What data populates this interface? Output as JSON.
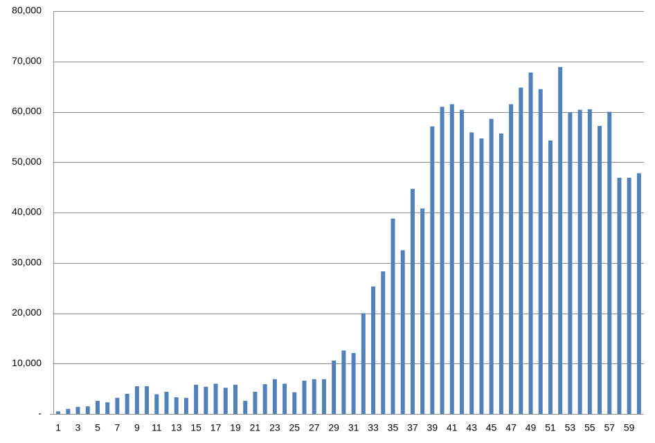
{
  "chart_data": {
    "type": "bar",
    "categories": [
      "1",
      null,
      "3",
      null,
      "5",
      null,
      "7",
      null,
      "9",
      null,
      "11",
      null,
      "13",
      null,
      "15",
      null,
      "17",
      null,
      "19",
      null,
      "21",
      null,
      "23",
      null,
      "25",
      null,
      "27",
      null,
      "29",
      null,
      "31",
      null,
      "33",
      null,
      "35",
      null,
      "37",
      null,
      "39",
      null,
      "41",
      null,
      "43",
      null,
      "45",
      null,
      "47",
      null,
      "49",
      null,
      "51",
      null,
      "53",
      null,
      "55",
      null,
      "57",
      null,
      "59",
      null
    ],
    "values": [
      500,
      1000,
      1400,
      1500,
      2600,
      2300,
      3200,
      4000,
      5500,
      5500,
      3900,
      4400,
      3300,
      3200,
      5800,
      5400,
      6000,
      5200,
      5800,
      2600,
      4400,
      5900,
      6900,
      6000,
      4300,
      6600,
      6900,
      6900,
      10600,
      12600,
      12100,
      20000,
      25300,
      28300,
      38800,
      32500,
      44700,
      40800,
      57100,
      61000,
      61500,
      60400,
      55900,
      54700,
      58600,
      55700,
      61500,
      64800,
      67800,
      64500,
      54300,
      68900,
      59900,
      60400,
      60500,
      57200,
      60000,
      46900,
      46900,
      47800
    ],
    "color": "#4f81bd",
    "ylim": [
      0,
      80000
    ],
    "yticks": [
      {
        "value": 0,
        "label": "-"
      },
      {
        "value": 10000,
        "label": "10,000"
      },
      {
        "value": 20000,
        "label": "20,000"
      },
      {
        "value": 30000,
        "label": "30,000"
      },
      {
        "value": 40000,
        "label": "40,000"
      },
      {
        "value": 50000,
        "label": "50,000"
      },
      {
        "value": 60000,
        "label": "60,000"
      },
      {
        "value": 70000,
        "label": "70,000"
      },
      {
        "value": 80000,
        "label": "80,000"
      }
    ],
    "grid": true
  }
}
